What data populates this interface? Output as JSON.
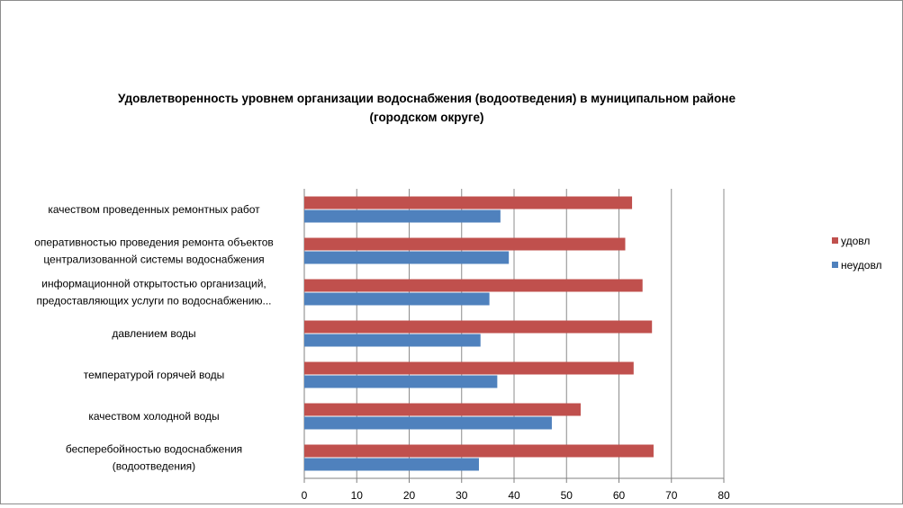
{
  "chart_data": {
    "type": "bar",
    "orientation": "horizontal",
    "title_lines": [
      "Удовлетворенность уровнем организации водоснабжения (водоотведения) в муниципальном районе",
      "(городском округе)"
    ],
    "categories": [
      [
        "качеством  проведенных  ремонтных работ"
      ],
      [
        "оперативностью  проведения  ремонта объектов",
        "централизованной системы водоснабжения"
      ],
      [
        "информационной  открытостью организаций,",
        "предоставляющих услуги по водоснабжению..."
      ],
      [
        "давлением  воды"
      ],
      [
        "температурой  горячей  воды"
      ],
      [
        "качеством  холодной воды"
      ],
      [
        "бесперебойностью  водоснабжения",
        "(водоотведения)"
      ]
    ],
    "series": [
      {
        "name": "удовл",
        "color": "#c0504d",
        "values": [
          62.5,
          61.2,
          64.5,
          66.3,
          62.8,
          52.7,
          66.6
        ]
      },
      {
        "name": "неудовл",
        "color": "#4f81bd",
        "values": [
          37.4,
          39.0,
          35.3,
          33.6,
          36.8,
          47.2,
          33.3
        ]
      }
    ],
    "xlim": [
      0,
      80
    ],
    "x_ticks": [
      "0",
      "10",
      "20",
      "30",
      "40",
      "50",
      "60",
      "70",
      "80"
    ],
    "grid": true,
    "legend_position": "right"
  }
}
